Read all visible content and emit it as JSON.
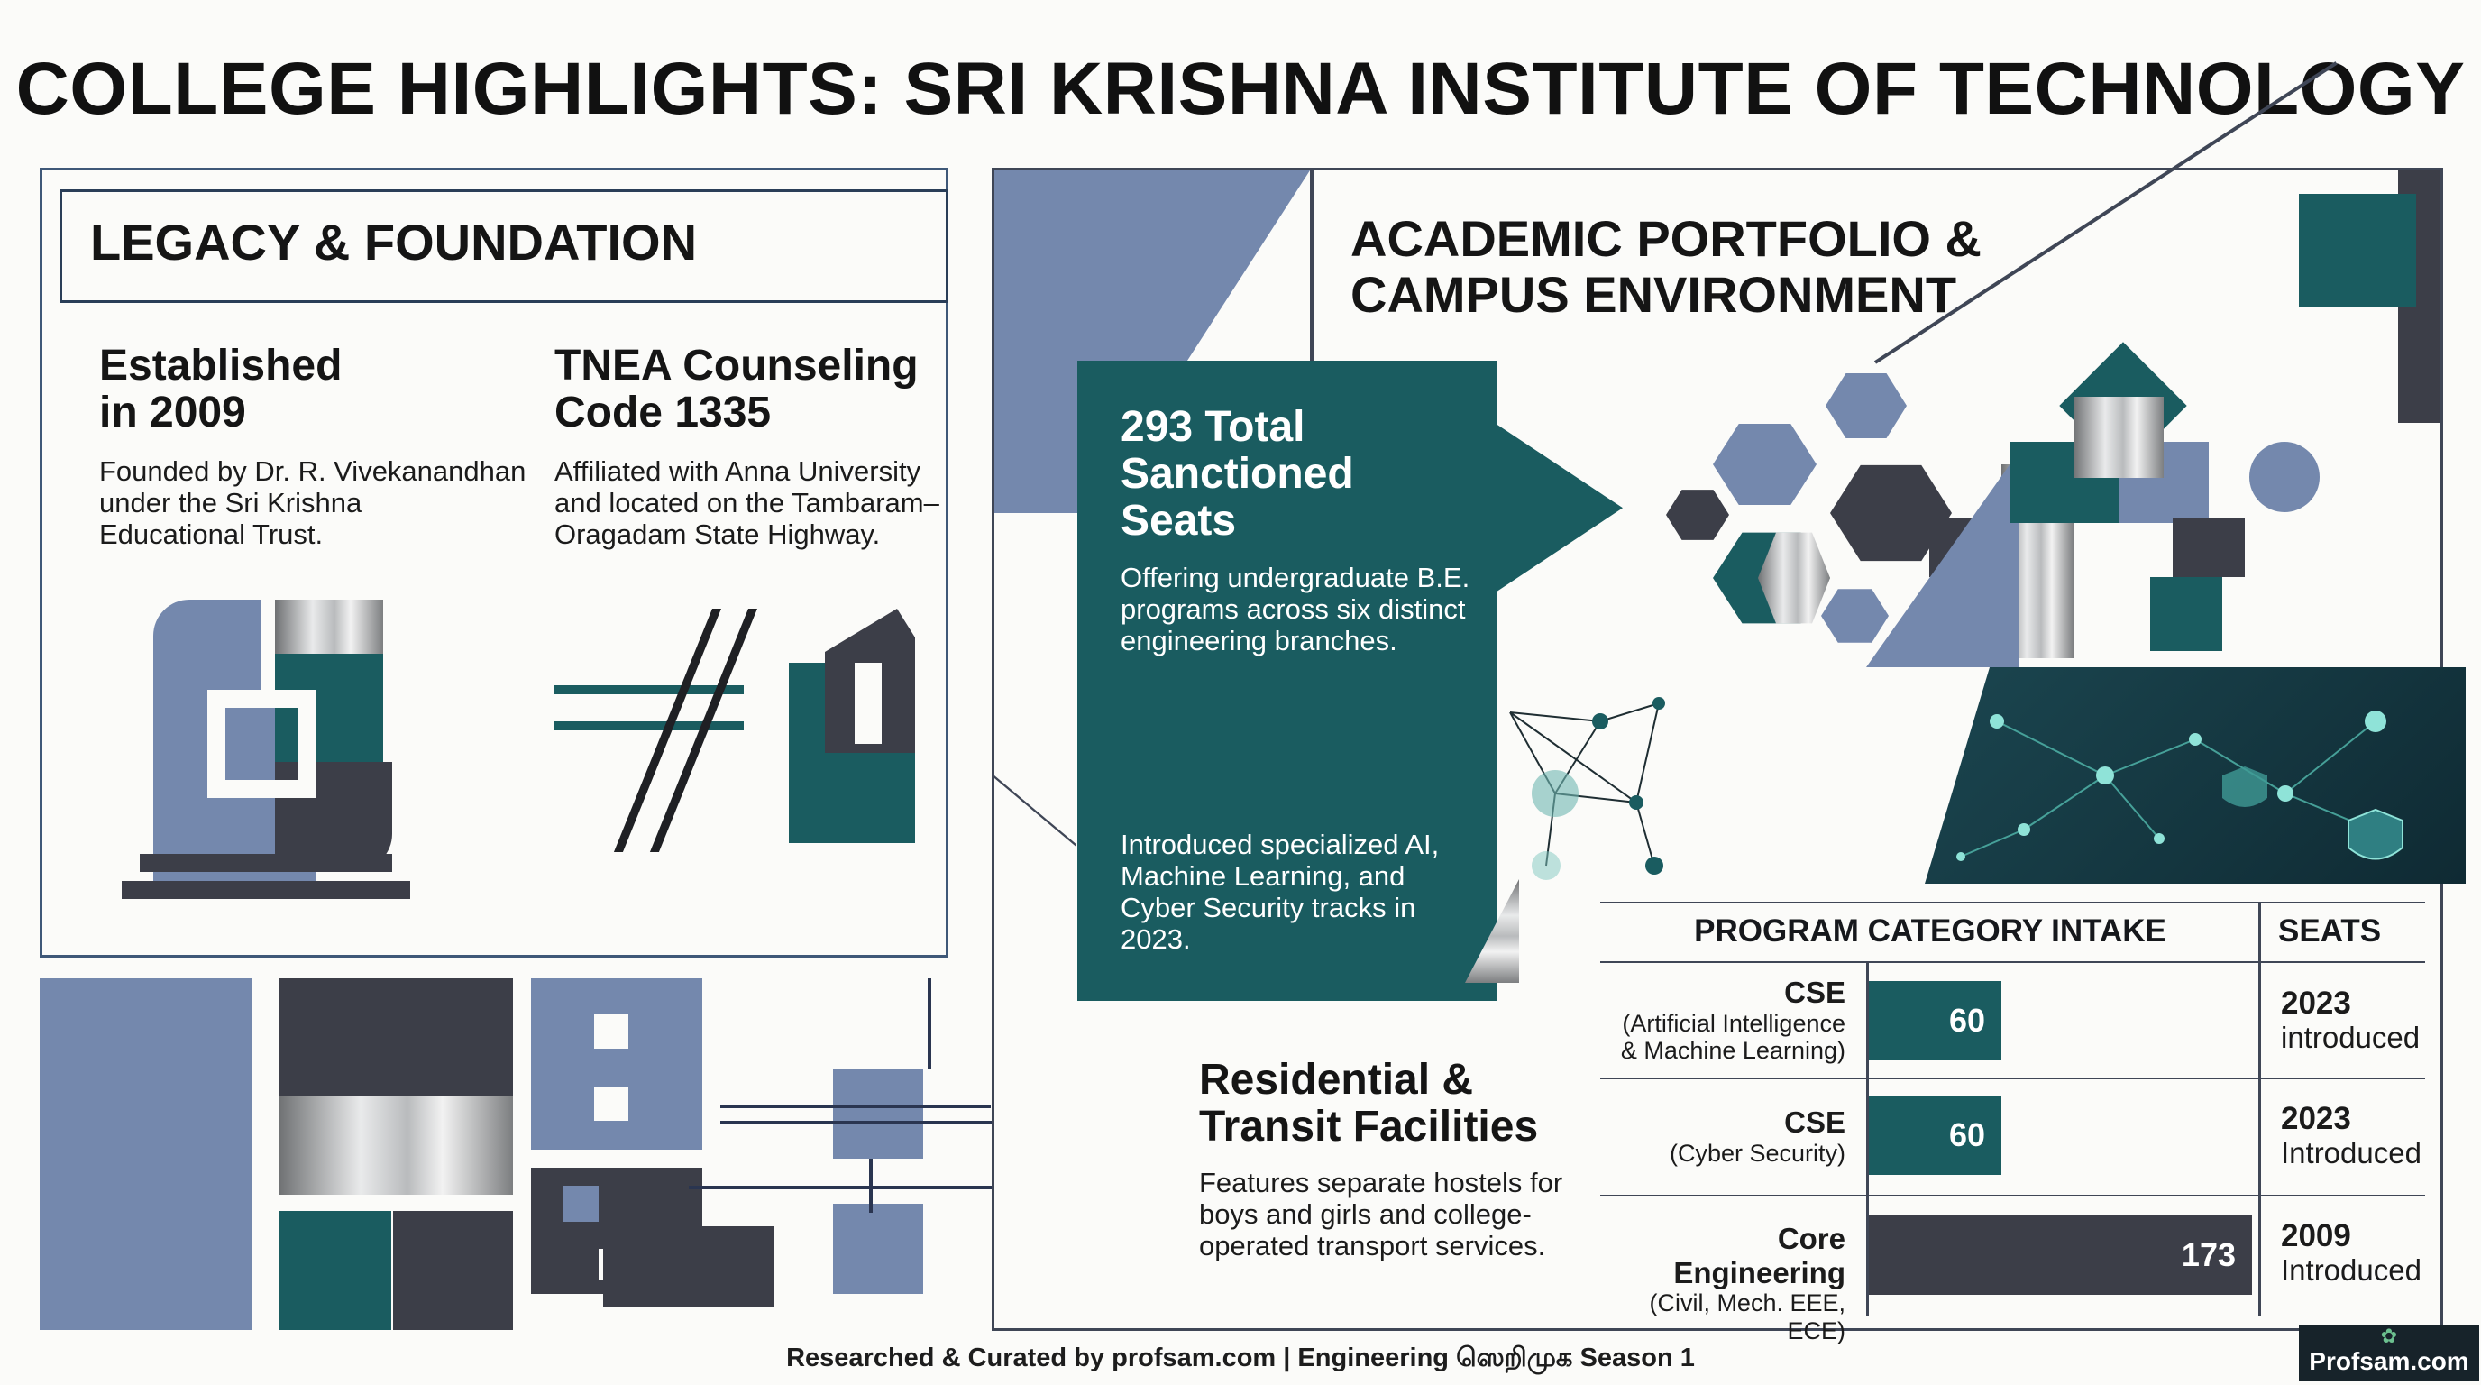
{
  "title": "COLLEGE HIGHLIGHTS: SRI KRISHNA INSTITUTE OF TECHNOLOGY",
  "legacy": {
    "heading": "LEGACY & FOUNDATION",
    "established": {
      "line1": "Established",
      "line2": "in 2009",
      "desc1": "Founded by Dr. R. Vivekanandhan",
      "desc2": "under the Sri Krishna",
      "desc3": "Educational Trust."
    },
    "tnea": {
      "line1": "TNEA Counseling",
      "line2": "Code 1335",
      "desc1": "Affiliated with Anna University",
      "desc2": "and located on the Tambaram–",
      "desc3": "Oragadam State Highway."
    }
  },
  "academic": {
    "heading1": "ACADEMIC PORTFOLIO &",
    "heading2": "CAMPUS ENVIRONMENT",
    "seats": {
      "line1": "293 Total",
      "line2": "Sanctioned",
      "line3": "Seats",
      "desc1": "Offering undergraduate B.E.",
      "desc2": "programs across six distinct",
      "desc3": "engineering branches."
    },
    "ai": {
      "line1": "Introduced specialized AI,",
      "line2": "Machine Learning, and",
      "line3": "Cyber Security tracks in",
      "line4": "2023."
    },
    "residential": {
      "line1": "Residential &",
      "line2": "Transit Facilities",
      "desc1": "Features separate hostels for",
      "desc2": "boys and girls and college-",
      "desc3": "operated transport services."
    }
  },
  "intake": {
    "header_category": "PROGRAM CATEGORY INTAKE",
    "header_seats": "SEATS",
    "rows": [
      {
        "name": "CSE",
        "sub1": "(Artificial Intelligence",
        "sub2": "& Machine Learning)",
        "seats": 60,
        "year": "2023",
        "status": "introduced"
      },
      {
        "name": "CSE",
        "sub1": "(Cyber Security)",
        "sub2": "",
        "seats": 60,
        "year": "2023",
        "status": "Introduced"
      },
      {
        "name": "Core Engineering",
        "sub1": "(Civil, Mech. EEE, ECE)",
        "sub2": "",
        "seats": 173,
        "year": "2009",
        "status": "Introduced"
      }
    ],
    "max_seats": 173
  },
  "footer": "Researched & Curated by profsam.com | Engineering ஸெறிமுக Season 1",
  "brand": "Profsam.com",
  "colors": {
    "teal": "#1a5c60",
    "slate_blue": "#7488ad",
    "charcoal": "#3c3e48",
    "background": "#fbfbf9"
  }
}
